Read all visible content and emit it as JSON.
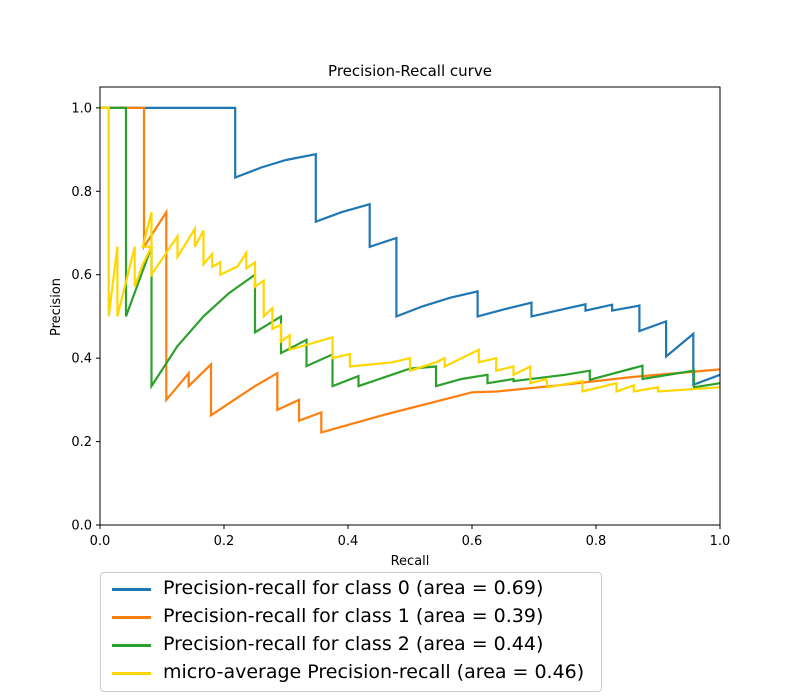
{
  "chart_data": {
    "type": "line",
    "title": "Precision-Recall curve",
    "xlabel": "Recall",
    "ylabel": "Precision",
    "xlim": [
      0.0,
      1.0
    ],
    "ylim": [
      0.0,
      1.05
    ],
    "xticks": [
      "0.0",
      "0.2",
      "0.4",
      "0.6",
      "0.8",
      "1.0"
    ],
    "yticks": [
      "0.0",
      "0.2",
      "0.4",
      "0.6",
      "0.8",
      "1.0"
    ],
    "grid": false,
    "legend_position": "below",
    "series": [
      {
        "name": "Precision-recall for class 0 (area = 0.69)",
        "color": "#1f77b4",
        "points": [
          [
            0.0,
            1.0
          ],
          [
            0.218,
            1.0
          ],
          [
            0.218,
            0.833
          ],
          [
            0.26,
            0.857
          ],
          [
            0.3,
            0.875
          ],
          [
            0.348,
            0.889
          ],
          [
            0.348,
            0.727
          ],
          [
            0.39,
            0.75
          ],
          [
            0.435,
            0.769
          ],
          [
            0.435,
            0.667
          ],
          [
            0.478,
            0.688
          ],
          [
            0.478,
            0.5
          ],
          [
            0.52,
            0.524
          ],
          [
            0.565,
            0.545
          ],
          [
            0.609,
            0.56
          ],
          [
            0.609,
            0.5
          ],
          [
            0.652,
            0.517
          ],
          [
            0.696,
            0.533
          ],
          [
            0.696,
            0.5
          ],
          [
            0.74,
            0.515
          ],
          [
            0.783,
            0.529
          ],
          [
            0.783,
            0.514
          ],
          [
            0.826,
            0.528
          ],
          [
            0.826,
            0.514
          ],
          [
            0.87,
            0.526
          ],
          [
            0.87,
            0.465
          ],
          [
            0.913,
            0.488
          ],
          [
            0.913,
            0.404
          ],
          [
            0.957,
            0.458
          ],
          [
            0.957,
            0.336
          ],
          [
            1.0,
            0.36
          ]
        ]
      },
      {
        "name": "Precision-recall for class 1 (area = 0.39)",
        "color": "#ff7f0e",
        "points": [
          [
            0.0,
            1.0
          ],
          [
            0.071,
            1.0
          ],
          [
            0.071,
            0.667
          ],
          [
            0.107,
            0.75
          ],
          [
            0.107,
            0.3
          ],
          [
            0.143,
            0.364
          ],
          [
            0.143,
            0.333
          ],
          [
            0.179,
            0.385
          ],
          [
            0.179,
            0.263
          ],
          [
            0.25,
            0.333
          ],
          [
            0.286,
            0.364
          ],
          [
            0.286,
            0.276
          ],
          [
            0.321,
            0.3
          ],
          [
            0.321,
            0.25
          ],
          [
            0.357,
            0.27
          ],
          [
            0.357,
            0.222
          ],
          [
            0.46,
            0.265
          ],
          [
            0.6,
            0.318
          ],
          [
            0.64,
            0.32
          ],
          [
            0.74,
            0.335
          ],
          [
            0.86,
            0.355
          ],
          [
            1.0,
            0.373
          ]
        ]
      },
      {
        "name": "Precision-recall for class 2 (area = 0.44)",
        "color": "#2ca02c",
        "points": [
          [
            0.0,
            1.0
          ],
          [
            0.042,
            1.0
          ],
          [
            0.042,
            0.5
          ],
          [
            0.083,
            0.667
          ],
          [
            0.083,
            0.333
          ],
          [
            0.125,
            0.429
          ],
          [
            0.167,
            0.5
          ],
          [
            0.208,
            0.556
          ],
          [
            0.25,
            0.6
          ],
          [
            0.25,
            0.462
          ],
          [
            0.292,
            0.5
          ],
          [
            0.292,
            0.412
          ],
          [
            0.333,
            0.444
          ],
          [
            0.333,
            0.381
          ],
          [
            0.375,
            0.409
          ],
          [
            0.375,
            0.333
          ],
          [
            0.417,
            0.357
          ],
          [
            0.417,
            0.333
          ],
          [
            0.5,
            0.375
          ],
          [
            0.542,
            0.38
          ],
          [
            0.542,
            0.333
          ],
          [
            0.583,
            0.35
          ],
          [
            0.625,
            0.36
          ],
          [
            0.625,
            0.34
          ],
          [
            0.667,
            0.35
          ],
          [
            0.667,
            0.345
          ],
          [
            0.75,
            0.36
          ],
          [
            0.79,
            0.37
          ],
          [
            0.79,
            0.348
          ],
          [
            0.875,
            0.382
          ],
          [
            0.875,
            0.35
          ],
          [
            0.958,
            0.37
          ],
          [
            0.958,
            0.33
          ],
          [
            1.0,
            0.34
          ]
        ]
      },
      {
        "name": "micro-average Precision-recall (area = 0.46)",
        "color": "#ffd700",
        "points": [
          [
            0.0,
            1.0
          ],
          [
            0.014,
            1.0
          ],
          [
            0.014,
            0.5
          ],
          [
            0.028,
            0.667
          ],
          [
            0.028,
            0.5
          ],
          [
            0.056,
            0.667
          ],
          [
            0.056,
            0.571
          ],
          [
            0.069,
            0.625
          ],
          [
            0.083,
            0.667
          ],
          [
            0.069,
            0.667
          ],
          [
            0.083,
            0.75
          ],
          [
            0.083,
            0.6
          ],
          [
            0.125,
            0.692
          ],
          [
            0.125,
            0.643
          ],
          [
            0.153,
            0.71
          ],
          [
            0.153,
            0.667
          ],
          [
            0.167,
            0.706
          ],
          [
            0.167,
            0.625
          ],
          [
            0.181,
            0.65
          ],
          [
            0.181,
            0.619
          ],
          [
            0.194,
            0.63
          ],
          [
            0.194,
            0.6
          ],
          [
            0.222,
            0.62
          ],
          [
            0.236,
            0.652
          ],
          [
            0.236,
            0.615
          ],
          [
            0.25,
            0.63
          ],
          [
            0.25,
            0.571
          ],
          [
            0.264,
            0.586
          ],
          [
            0.264,
            0.5
          ],
          [
            0.278,
            0.52
          ],
          [
            0.278,
            0.47
          ],
          [
            0.292,
            0.48
          ],
          [
            0.292,
            0.44
          ],
          [
            0.306,
            0.455
          ],
          [
            0.306,
            0.42
          ],
          [
            0.375,
            0.45
          ],
          [
            0.375,
            0.4
          ],
          [
            0.403,
            0.41
          ],
          [
            0.403,
            0.38
          ],
          [
            0.472,
            0.39
          ],
          [
            0.5,
            0.4
          ],
          [
            0.5,
            0.37
          ],
          [
            0.542,
            0.39
          ],
          [
            0.556,
            0.4
          ],
          [
            0.556,
            0.38
          ],
          [
            0.611,
            0.42
          ],
          [
            0.611,
            0.39
          ],
          [
            0.639,
            0.4
          ],
          [
            0.639,
            0.37
          ],
          [
            0.667,
            0.38
          ],
          [
            0.667,
            0.36
          ],
          [
            0.694,
            0.38
          ],
          [
            0.694,
            0.34
          ],
          [
            0.72,
            0.35
          ],
          [
            0.722,
            0.33
          ],
          [
            0.778,
            0.345
          ],
          [
            0.778,
            0.32
          ],
          [
            0.833,
            0.34
          ],
          [
            0.833,
            0.32
          ],
          [
            0.861,
            0.335
          ],
          [
            0.861,
            0.32
          ],
          [
            0.9,
            0.33
          ],
          [
            0.9,
            0.32
          ],
          [
            1.0,
            0.33
          ]
        ]
      }
    ]
  }
}
